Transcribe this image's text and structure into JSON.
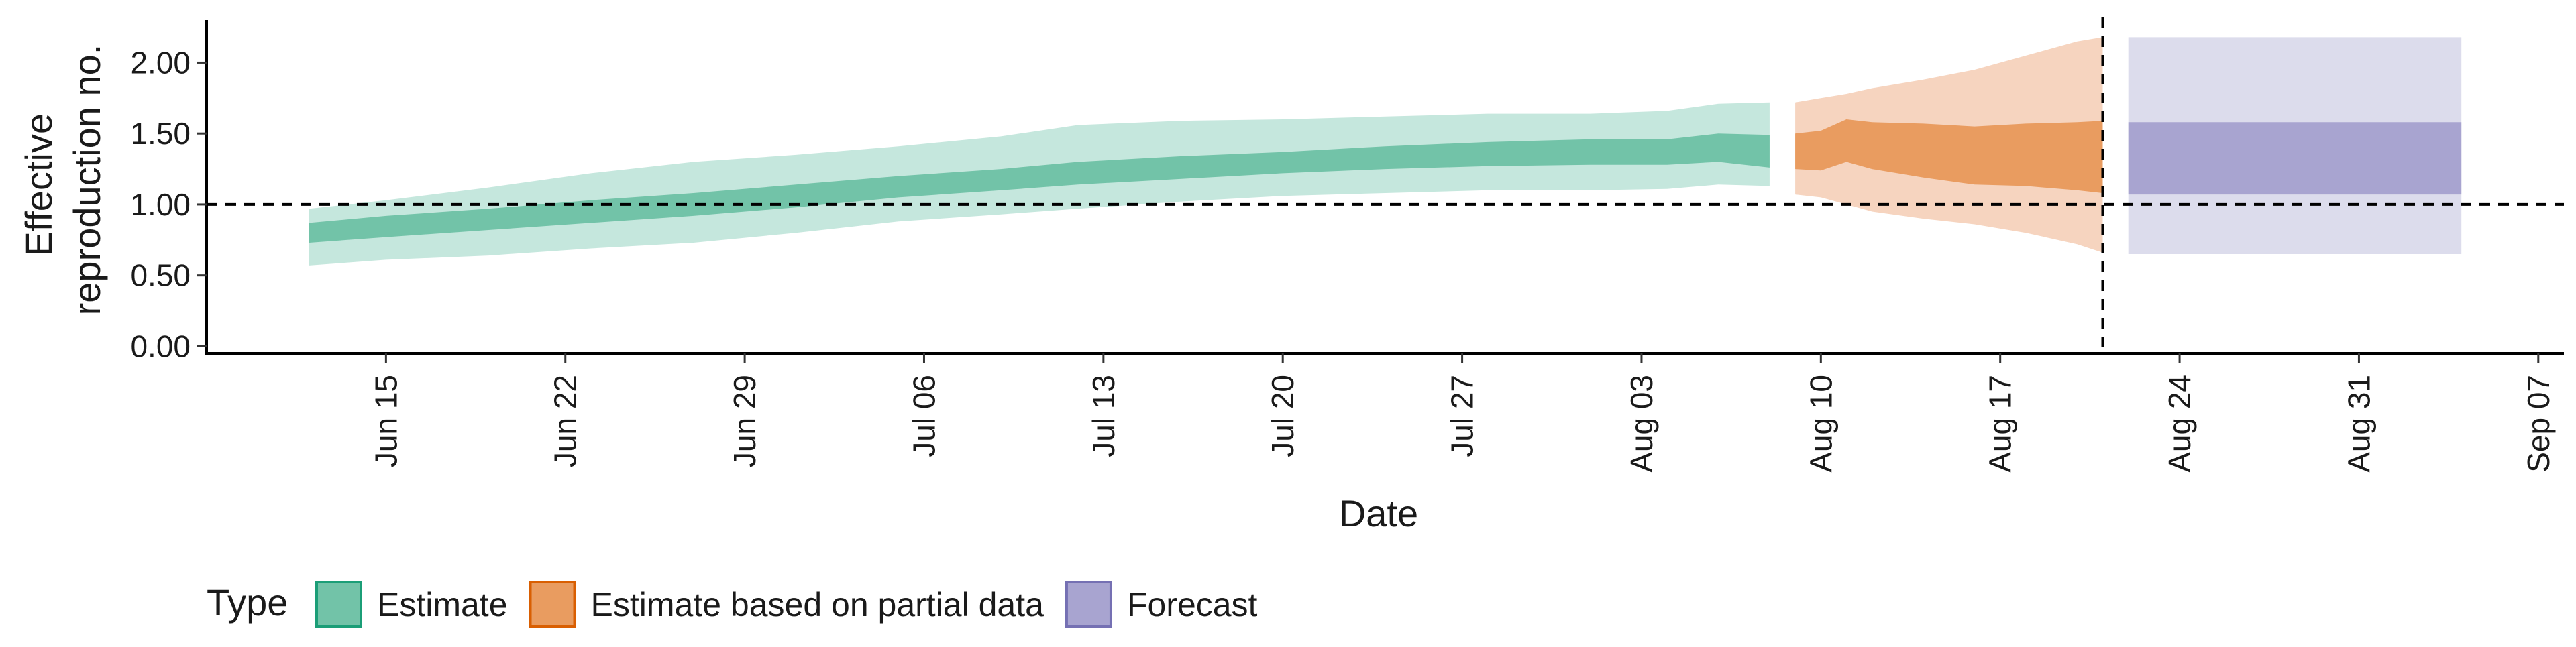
{
  "chart_data": {
    "type": "area",
    "xlabel": "Date",
    "ylabel": "Effective reproduction no.",
    "ylabel_lines": [
      "Effective",
      "reproduction no."
    ],
    "xlim": [
      "2020-06-08",
      "2020-09-08"
    ],
    "ylim": [
      -0.05,
      2.3
    ],
    "y_ticks": [
      0,
      0.5,
      1.0,
      1.5,
      2.0
    ],
    "y_tick_labels": [
      "0.00",
      "0.50",
      "1.00",
      "1.50",
      "2.00"
    ],
    "x_ticks": [
      "2020-06-15",
      "2020-06-22",
      "2020-06-29",
      "2020-07-06",
      "2020-07-13",
      "2020-07-20",
      "2020-07-27",
      "2020-08-03",
      "2020-08-10",
      "2020-08-17",
      "2020-08-24",
      "2020-08-31",
      "2020-09-07"
    ],
    "x_tick_labels": [
      "Jun 15",
      "Jun 22",
      "Jun 29",
      "Jul 06",
      "Jul 13",
      "Jul 20",
      "Jul 27",
      "Aug 03",
      "Aug 10",
      "Aug 17",
      "Aug 24",
      "Aug 31",
      "Sep 07"
    ],
    "reference_line_y": 1.0,
    "reference_line_date": "2020-08-21",
    "grid": false,
    "legend": {
      "title": "Type",
      "position": "bottom"
    },
    "series": [
      {
        "name": "Estimate",
        "color": "#66c2a5",
        "fill_outer": "#c5e7dd",
        "fill_inner": "#72c3a8",
        "dates": [
          "2020-06-12",
          "2020-06-15",
          "2020-06-19",
          "2020-06-23",
          "2020-06-27",
          "2020-07-01",
          "2020-07-05",
          "2020-07-09",
          "2020-07-12",
          "2020-07-16",
          "2020-07-20",
          "2020-07-24",
          "2020-07-28",
          "2020-08-01",
          "2020-08-04",
          "2020-08-06",
          "2020-08-08"
        ],
        "lower_90": [
          0.57,
          0.61,
          0.64,
          0.69,
          0.73,
          0.8,
          0.88,
          0.93,
          0.97,
          1.02,
          1.06,
          1.08,
          1.1,
          1.1,
          1.11,
          1.14,
          1.13
        ],
        "lower_50": [
          0.73,
          0.77,
          0.82,
          0.87,
          0.92,
          0.98,
          1.05,
          1.1,
          1.14,
          1.18,
          1.22,
          1.25,
          1.27,
          1.28,
          1.28,
          1.3,
          1.26
        ],
        "upper_50": [
          0.87,
          0.92,
          0.97,
          1.03,
          1.08,
          1.14,
          1.2,
          1.25,
          1.3,
          1.34,
          1.37,
          1.41,
          1.44,
          1.46,
          1.46,
          1.5,
          1.49
        ],
        "upper_90": [
          0.97,
          1.03,
          1.12,
          1.22,
          1.3,
          1.35,
          1.41,
          1.48,
          1.56,
          1.59,
          1.6,
          1.62,
          1.64,
          1.64,
          1.66,
          1.71,
          1.72
        ]
      },
      {
        "name": "Estimate based on partial data",
        "color": "#fc8d62",
        "fill_outer": "#f6d4bf",
        "fill_inner": "#e99c60",
        "dates": [
          "2020-08-09",
          "2020-08-10",
          "2020-08-11",
          "2020-08-12",
          "2020-08-14",
          "2020-08-16",
          "2020-08-18",
          "2020-08-20",
          "2020-08-21"
        ],
        "lower_90": [
          1.07,
          1.05,
          1.0,
          0.95,
          0.9,
          0.86,
          0.8,
          0.72,
          0.66
        ],
        "lower_50": [
          1.25,
          1.24,
          1.3,
          1.25,
          1.19,
          1.14,
          1.13,
          1.1,
          1.08
        ],
        "upper_50": [
          1.5,
          1.52,
          1.6,
          1.58,
          1.57,
          1.55,
          1.57,
          1.58,
          1.59
        ],
        "upper_90": [
          1.72,
          1.75,
          1.78,
          1.82,
          1.88,
          1.95,
          2.05,
          2.15,
          2.18
        ]
      },
      {
        "name": "Forecast",
        "color": "#8da0cb",
        "fill_outer": "#dcdcec",
        "fill_inner": "#a8a4d0",
        "dates": [
          "2020-08-22",
          "2020-09-04"
        ],
        "lower_90": [
          0.65,
          0.65
        ],
        "lower_50": [
          1.07,
          1.07
        ],
        "upper_50": [
          1.58,
          1.58
        ],
        "upper_90": [
          2.18,
          2.18
        ]
      }
    ]
  },
  "legend_items": [
    {
      "label": "Estimate",
      "fill": "#72c3a8",
      "stroke": "#1b9e77"
    },
    {
      "label": "Estimate based on partial data",
      "fill": "#e99c60",
      "stroke": "#d95f02"
    },
    {
      "label": "Forecast",
      "fill": "#a8a4d0",
      "stroke": "#7570b3"
    }
  ]
}
